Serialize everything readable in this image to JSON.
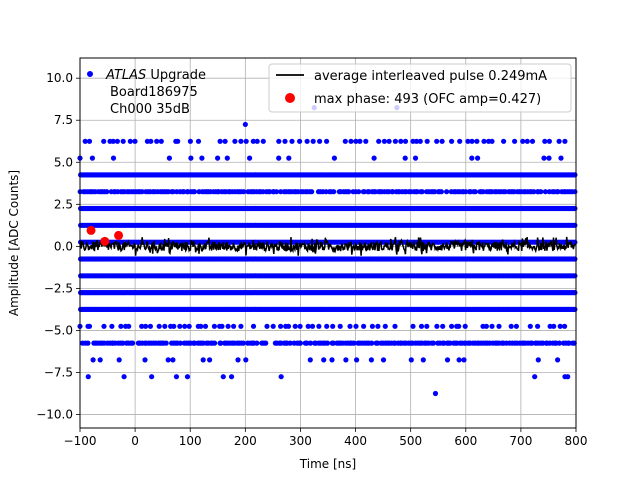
{
  "chart_data": {
    "type": "scatter",
    "xlabel": "Time [ns]",
    "ylabel": "Amplitude [ADC Counts]",
    "xlim": [
      -100,
      800
    ],
    "ylim": [
      -10.8,
      11.2
    ],
    "xticks": [
      -100,
      0,
      100,
      200,
      300,
      400,
      500,
      600,
      700,
      800
    ],
    "yticks": [
      -10.0,
      -7.5,
      -5.0,
      -2.5,
      0.0,
      2.5,
      5.0,
      7.5,
      10.0
    ],
    "xtick_labels": [
      "−100",
      "0",
      "100",
      "200",
      "300",
      "400",
      "500",
      "600",
      "700",
      "800"
    ],
    "ytick_labels": [
      "−10.0",
      "−7.5",
      "−5.0",
      "−2.5",
      "0.0",
      "2.5",
      "5.0",
      "7.5",
      "10.0"
    ],
    "grid": true,
    "legend_left": {
      "italic": "ATLAS",
      "rest": " Upgrade",
      "line2": "Board186975",
      "line3": "Ch000 35dB",
      "color": "#0000ff"
    },
    "legend_right": {
      "placement": "upper right",
      "entries": [
        {
          "label": "average interleaved pulse 0.249mA",
          "kind": "line",
          "color": "#000000"
        },
        {
          "label": "max phase: 493 (OFC amp=0.427)",
          "kind": "marker",
          "color": "#ff0000"
        }
      ]
    },
    "series": [
      {
        "kind": "dense_bands",
        "color": "#0000ff",
        "bands": [
          {
            "y": 4.25,
            "density": "full"
          },
          {
            "y": 2.25,
            "density": "full"
          },
          {
            "y": 1.25,
            "density": "full"
          },
          {
            "y": 0.25,
            "density": "full"
          },
          {
            "y": -0.75,
            "density": "full"
          },
          {
            "y": -1.75,
            "density": "full"
          },
          {
            "y": -2.75,
            "density": "full"
          },
          {
            "y": -3.75,
            "density": "full"
          },
          {
            "y": 3.25,
            "density": "high"
          },
          {
            "y": -5.75,
            "density": "high"
          },
          {
            "y": 6.25,
            "density": "medium"
          },
          {
            "y": -4.75,
            "density": "medium"
          },
          {
            "y": 5.25,
            "density": "low"
          },
          {
            "y": -6.75,
            "density": "low"
          }
        ],
        "outliers": [
          {
            "x": 200,
            "y": 7.25
          },
          {
            "x": 325,
            "y": 8.25
          },
          {
            "x": 475,
            "y": 8.25
          },
          {
            "x": 545,
            "y": -8.75
          },
          {
            "x": -85,
            "y": -7.75
          },
          {
            "x": -20,
            "y": -7.75
          },
          {
            "x": 30,
            "y": -7.75
          },
          {
            "x": 75,
            "y": -7.75
          },
          {
            "x": 95,
            "y": -7.75
          },
          {
            "x": 160,
            "y": -7.75
          },
          {
            "x": 175,
            "y": -7.75
          },
          {
            "x": 265,
            "y": -7.75
          },
          {
            "x": 725,
            "y": -7.75
          },
          {
            "x": 780,
            "y": -7.75
          },
          {
            "x": 785,
            "y": -7.75
          }
        ]
      },
      {
        "kind": "line",
        "name": "average interleaved pulse 0.249mA",
        "color": "#000000",
        "y_center": 0.0,
        "noise_amplitude": 0.35
      },
      {
        "kind": "scatter",
        "name": "max phase: 493 (OFC amp=0.427)",
        "color": "#ff0000",
        "points": [
          {
            "x": -80,
            "y": 0.95
          },
          {
            "x": -55,
            "y": 0.3
          },
          {
            "x": -30,
            "y": 0.65
          }
        ]
      }
    ]
  }
}
